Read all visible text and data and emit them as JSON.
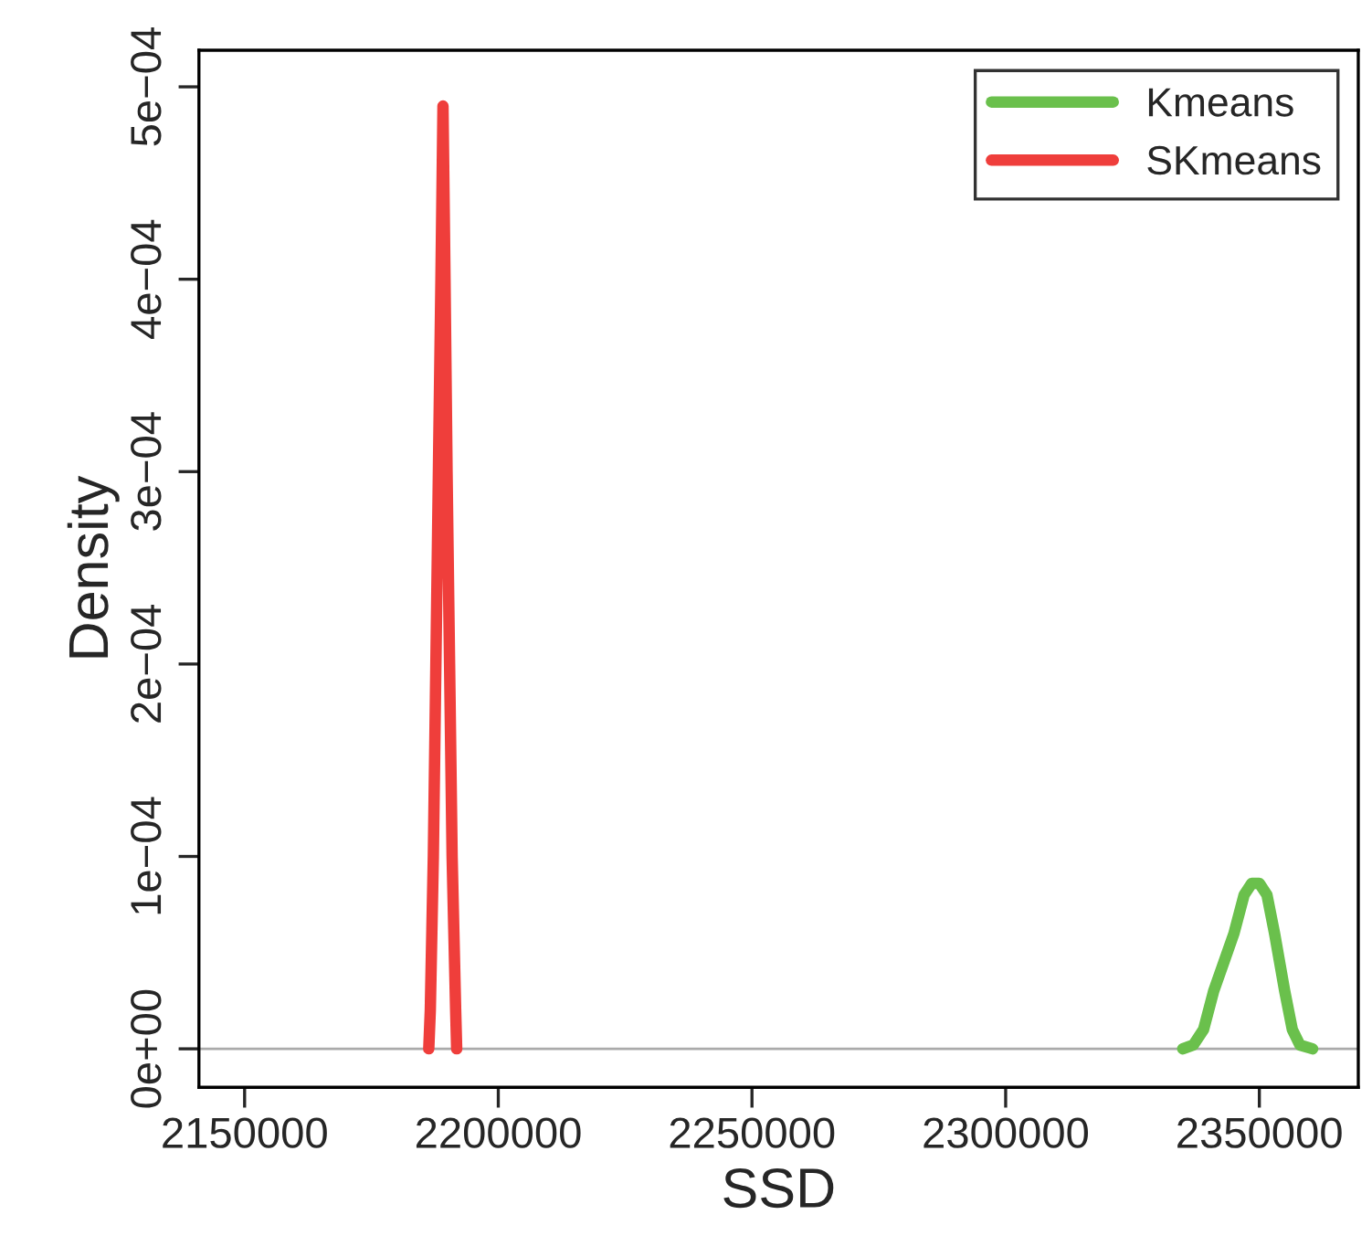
{
  "chart_data": {
    "type": "line",
    "xlabel": "SSD",
    "ylabel": "Density",
    "xlim": [
      2141000,
      2369500
    ],
    "ylim": [
      -2e-05,
      0.000519
    ],
    "xticks": [
      2150000,
      2200000,
      2250000,
      2300000,
      2350000
    ],
    "yticks": [
      {
        "value": 0,
        "label": "0e+00"
      },
      {
        "value": 0.0001,
        "label": "1e−04"
      },
      {
        "value": 0.0002,
        "label": "2e−04"
      },
      {
        "value": 0.0003,
        "label": "3e−04"
      },
      {
        "value": 0.0004,
        "label": "4e−04"
      },
      {
        "value": 0.0005,
        "label": "5e−04"
      }
    ],
    "grid": false,
    "legend": "top right",
    "marker": "none",
    "line_style": "solid",
    "ref_lines": [
      {
        "axis": "y",
        "value": 0,
        "color": "#aaaaaa"
      }
    ],
    "series": [
      {
        "name": "Kmeans",
        "color": "#6ac04c",
        "x": [
          2334900,
          2337000,
          2339000,
          2341000,
          2343000,
          2345000,
          2347000,
          2348500,
          2350000,
          2351500,
          2353000,
          2355000,
          2356500,
          2358000,
          2360500
        ],
        "values": [
          0,
          2e-06,
          1e-05,
          3e-05,
          4.5e-05,
          6e-05,
          8e-05,
          8.6e-05,
          8.6e-05,
          8e-05,
          6e-05,
          3e-05,
          1e-05,
          2e-06,
          0
        ]
      },
      {
        "name": "SKmeans",
        "color": "#ef3e3b",
        "x": [
          2186300,
          2186600,
          2187200,
          2187700,
          2188200,
          2188700,
          2189100,
          2189500,
          2189900,
          2190400,
          2190900,
          2191600,
          2191800
        ],
        "values": [
          0,
          2e-05,
          0.0001,
          0.0002,
          0.0003,
          0.0004,
          0.00049,
          0.0004,
          0.0003,
          0.0002,
          0.0001,
          2e-05,
          0
        ]
      }
    ]
  }
}
